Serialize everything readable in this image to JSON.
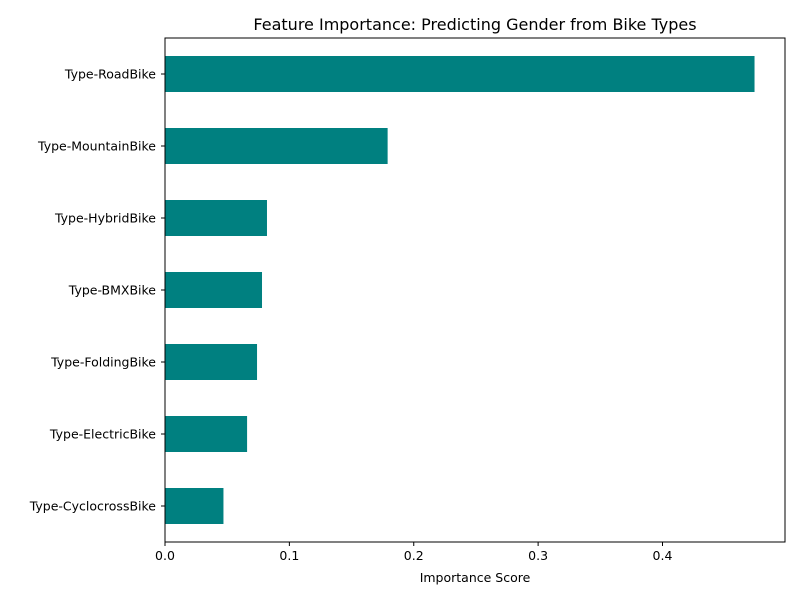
{
  "chart_data": {
    "type": "bar",
    "orientation": "horizontal",
    "title": "Feature Importance: Predicting Gender from Bike Types",
    "xlabel": "Importance Score",
    "ylabel": "",
    "categories": [
      "Type-RoadBike",
      "Type-MountainBike",
      "Type-HybridBike",
      "Type-BMXBike",
      "Type-FoldingBike",
      "Type-ElectricBike",
      "Type-CyclocrossBike"
    ],
    "values": [
      0.474,
      0.179,
      0.082,
      0.078,
      0.074,
      0.066,
      0.047
    ],
    "xlim": [
      0,
      0.4985
    ],
    "xticks": [
      "0.0",
      "0.1",
      "0.2",
      "0.3",
      "0.4"
    ],
    "xtick_values": [
      0,
      0.1,
      0.2,
      0.3,
      0.4
    ],
    "bar_color": "#008080",
    "grid": false,
    "legend": "none"
  }
}
